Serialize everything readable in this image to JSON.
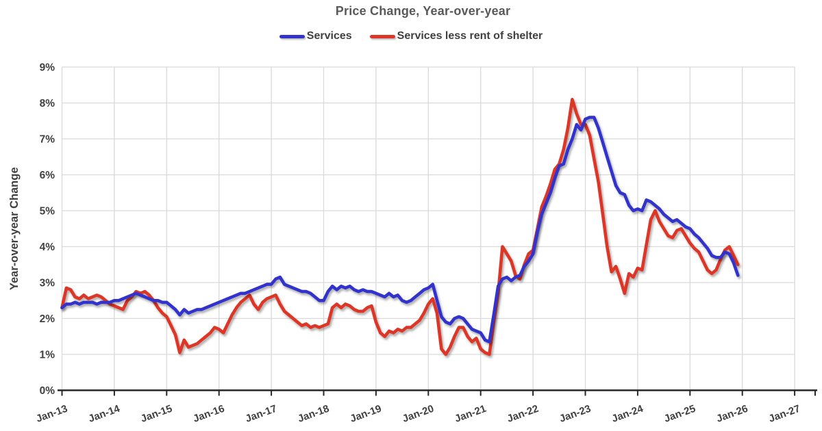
{
  "chart_data": {
    "type": "line",
    "title": "Price Change, Year-over-year",
    "ylabel": "Year-over-year Change",
    "xlabel": "",
    "x_tick_labels": [
      "Jan-13",
      "Jan-14",
      "Jan-15",
      "Jan-16",
      "Jan-17",
      "Jan-18",
      "Jan-19",
      "Jan-20",
      "Jan-21",
      "Jan-22",
      "Jan-23",
      "Jan-24",
      "Jan-25",
      "Jan-26",
      "Jan-27"
    ],
    "y_tick_labels": [
      "0%",
      "1%",
      "2%",
      "3%",
      "4%",
      "5%",
      "6%",
      "7%",
      "8%",
      "9%"
    ],
    "ylim": [
      0,
      9
    ],
    "grid": true,
    "legend_position": "top-center",
    "frequency": "monthly",
    "data_start": "Jan-13",
    "data_end": "Dec-25",
    "colors": {
      "background": "#FFFFFF",
      "gridline": "#D9D9D9",
      "axis": "#262626",
      "title": "#595959",
      "labels": "#404040"
    },
    "series": [
      {
        "name": "Services",
        "color": "#3333CC",
        "values": [
          2.3,
          2.4,
          2.4,
          2.45,
          2.4,
          2.45,
          2.45,
          2.45,
          2.4,
          2.45,
          2.45,
          2.45,
          2.5,
          2.5,
          2.55,
          2.6,
          2.65,
          2.7,
          2.65,
          2.6,
          2.55,
          2.5,
          2.5,
          2.45,
          2.45,
          2.35,
          2.25,
          2.1,
          2.25,
          2.15,
          2.2,
          2.25,
          2.25,
          2.3,
          2.35,
          2.4,
          2.45,
          2.5,
          2.55,
          2.6,
          2.65,
          2.7,
          2.7,
          2.75,
          2.8,
          2.85,
          2.9,
          2.95,
          2.95,
          3.1,
          3.15,
          2.95,
          2.9,
          2.85,
          2.8,
          2.75,
          2.75,
          2.7,
          2.6,
          2.5,
          2.5,
          2.75,
          2.9,
          2.8,
          2.9,
          2.85,
          2.9,
          2.8,
          2.75,
          2.8,
          2.75,
          2.75,
          2.7,
          2.65,
          2.6,
          2.7,
          2.6,
          2.65,
          2.5,
          2.45,
          2.5,
          2.6,
          2.7,
          2.8,
          2.85,
          2.95,
          2.5,
          2.05,
          1.9,
          1.85,
          2.0,
          2.05,
          2.0,
          1.85,
          1.7,
          1.65,
          1.6,
          1.4,
          1.35,
          2.1,
          2.9,
          3.1,
          3.15,
          3.05,
          3.15,
          3.2,
          3.45,
          3.6,
          3.8,
          4.4,
          4.9,
          5.2,
          5.5,
          5.9,
          6.25,
          6.3,
          6.7,
          7.0,
          7.4,
          7.25,
          7.55,
          7.6,
          7.6,
          7.3,
          6.9,
          6.5,
          6.1,
          5.7,
          5.5,
          5.45,
          5.15,
          5.0,
          5.05,
          5.0,
          5.3,
          5.25,
          5.15,
          5.05,
          4.9,
          4.8,
          4.7,
          4.75,
          4.65,
          4.55,
          4.5,
          4.35,
          4.25,
          4.1,
          3.95,
          3.75,
          3.7,
          3.7,
          3.85,
          3.8,
          3.55,
          3.2
        ]
      },
      {
        "name": "Services less rent of shelter",
        "color": "#DD3526",
        "values": [
          2.3,
          2.85,
          2.8,
          2.6,
          2.55,
          2.65,
          2.55,
          2.6,
          2.65,
          2.6,
          2.5,
          2.4,
          2.35,
          2.3,
          2.25,
          2.5,
          2.6,
          2.75,
          2.7,
          2.75,
          2.65,
          2.5,
          2.3,
          2.15,
          2.05,
          1.8,
          1.55,
          1.05,
          1.4,
          1.2,
          1.25,
          1.3,
          1.4,
          1.5,
          1.6,
          1.75,
          1.7,
          1.6,
          1.85,
          2.1,
          2.3,
          2.45,
          2.55,
          2.65,
          2.4,
          2.25,
          2.45,
          2.55,
          2.6,
          2.65,
          2.4,
          2.2,
          2.1,
          2.0,
          1.9,
          1.8,
          1.85,
          1.75,
          1.8,
          1.75,
          1.8,
          1.85,
          2.3,
          2.4,
          2.3,
          2.4,
          2.35,
          2.25,
          2.2,
          2.2,
          2.3,
          2.35,
          1.9,
          1.6,
          1.5,
          1.65,
          1.6,
          1.7,
          1.65,
          1.75,
          1.75,
          1.85,
          1.95,
          2.15,
          2.4,
          2.55,
          2.15,
          1.15,
          1.0,
          1.2,
          1.5,
          1.75,
          1.75,
          1.5,
          1.35,
          1.45,
          1.15,
          1.05,
          1.0,
          1.9,
          2.7,
          4.0,
          3.8,
          3.6,
          3.2,
          3.1,
          3.5,
          3.8,
          3.9,
          4.5,
          5.1,
          5.4,
          5.75,
          6.15,
          6.3,
          6.7,
          7.3,
          8.1,
          7.7,
          7.4,
          7.4,
          7.1,
          6.45,
          5.8,
          4.9,
          4.0,
          3.3,
          3.45,
          3.1,
          2.7,
          3.25,
          3.15,
          3.4,
          3.35,
          4.05,
          4.75,
          5.0,
          4.7,
          4.5,
          4.3,
          4.25,
          4.45,
          4.5,
          4.3,
          4.1,
          3.95,
          3.85,
          3.6,
          3.35,
          3.25,
          3.35,
          3.65,
          3.9,
          4.0,
          3.75,
          3.5
        ]
      }
    ]
  }
}
